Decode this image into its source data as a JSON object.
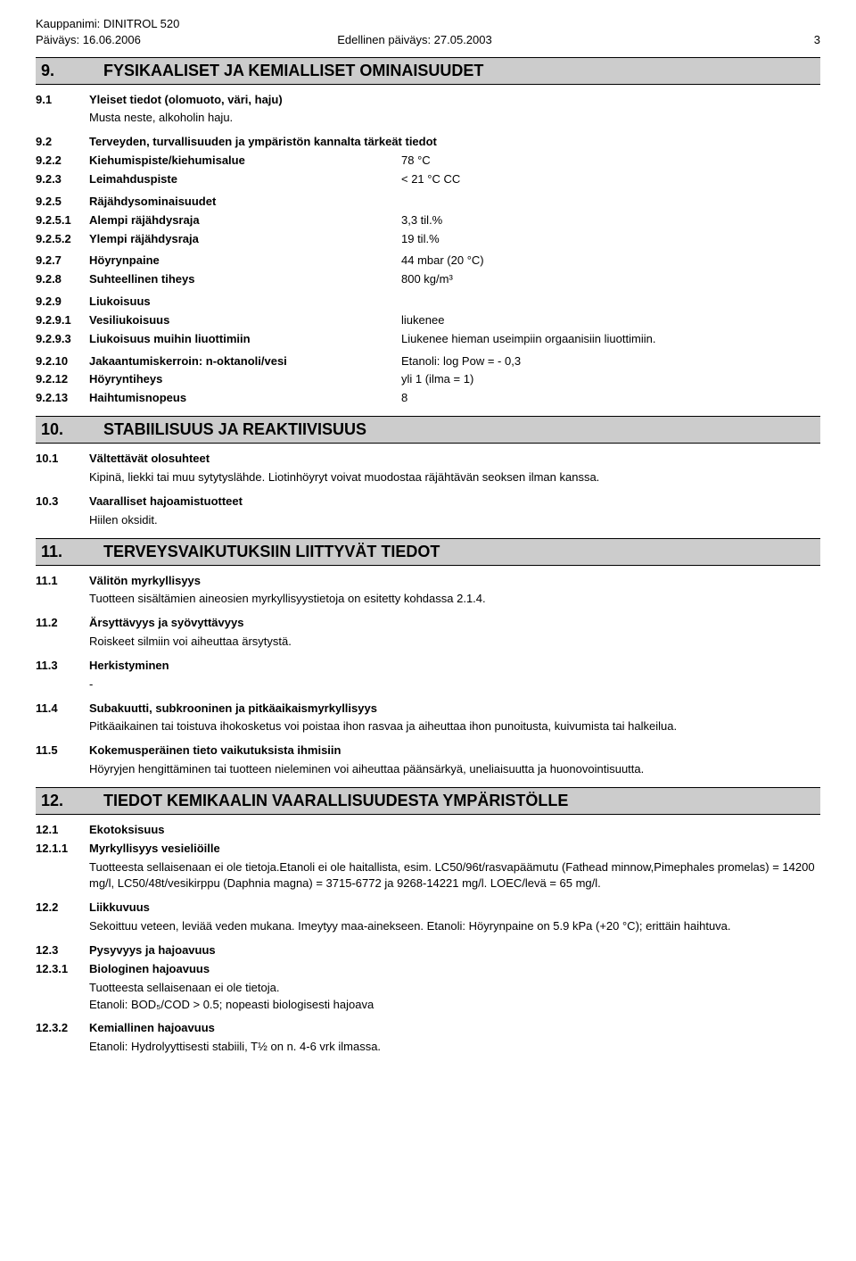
{
  "header": {
    "trade_name_label": "Kauppanimi: DINITROL 520",
    "date_label": "Päiväys: 16.06.2006",
    "previous_date_label": "Edellinen päiväys: 27.05.2003",
    "page_number": "3"
  },
  "section9": {
    "num": "9.",
    "title": "FYSIKAALISET JA KEMIALLISET OMINAISUUDET",
    "r9_1": {
      "n": "9.1",
      "l": "Yleiset tiedot (olomuoto, väri, haju)",
      "body": "Musta  neste, alkoholin haju."
    },
    "r9_2": {
      "n": "9.2",
      "l": "Terveyden, turvallisuuden ja ympäristön kannalta tärkeät tiedot"
    },
    "r9_2_2": {
      "n": "9.2.2",
      "l": "Kiehumispiste/kiehumisalue",
      "v": "78 °C"
    },
    "r9_2_3": {
      "n": "9.2.3",
      "l": "Leimahduspiste",
      "v": "< 21 °C  CC"
    },
    "r9_2_5": {
      "n": "9.2.5",
      "l": "Räjähdysominaisuudet"
    },
    "r9_2_5_1": {
      "n": "9.2.5.1",
      "l": "Alempi räjähdysraja",
      "v": "3,3 til.%"
    },
    "r9_2_5_2": {
      "n": "9.2.5.2",
      "l": "Ylempi räjähdysraja",
      "v": "19 til.%"
    },
    "r9_2_7": {
      "n": "9.2.7",
      "l": "Höyrynpaine",
      "v": "44 mbar (20 °C)"
    },
    "r9_2_8": {
      "n": "9.2.8",
      "l": "Suhteellinen tiheys",
      "v": "800 kg/m³"
    },
    "r9_2_9": {
      "n": "9.2.9",
      "l": "Liukoisuus"
    },
    "r9_2_9_1": {
      "n": "9.2.9.1",
      "l": "Vesiliukoisuus",
      "v": "liukenee"
    },
    "r9_2_9_3": {
      "n": "9.2.9.3",
      "l": "Liukoisuus muihin liuottimiin",
      "v": "Liukenee hieman useimpiin orgaanisiin liuottimiin."
    },
    "r9_2_10": {
      "n": "9.2.10",
      "l": "Jakaantumiskerroin: n-oktanoli/vesi",
      "v": "Etanoli: log Pow = - 0,3"
    },
    "r9_2_12": {
      "n": "9.2.12",
      "l": "Höyryntiheys",
      "v": "yli 1  (ilma = 1)"
    },
    "r9_2_13": {
      "n": "9.2.13",
      "l": "Haihtumisnopeus",
      "v": "8"
    }
  },
  "section10": {
    "num": "10.",
    "title": "STABIILISUUS JA REAKTIIVISUUS",
    "r10_1": {
      "n": "10.1",
      "l": "Vältettävät olosuhteet",
      "body": "Kipinä, liekki tai muu sytytyslähde. Liotinhöyryt voivat muodostaa räjähtävän seoksen ilman kanssa."
    },
    "r10_3": {
      "n": "10.3",
      "l": "Vaaralliset hajoamistuotteet",
      "body": "Hiilen oksidit."
    }
  },
  "section11": {
    "num": "11.",
    "title": "TERVEYSVAIKUTUKSIIN LIITTYVÄT TIEDOT",
    "r11_1": {
      "n": "11.1",
      "l": "Välitön myrkyllisyys",
      "body": "Tuotteen sisältämien aineosien myrkyllisyystietoja on esitetty kohdassa 2.1.4."
    },
    "r11_2": {
      "n": "11.2",
      "l": "Ärsyttävyys ja syövyttävyys",
      "body": "Roiskeet silmiin voi aiheuttaa ärsytystä."
    },
    "r11_3": {
      "n": "11.3",
      "l": "Herkistyminen",
      "body": "-"
    },
    "r11_4": {
      "n": "11.4",
      "l": "Subakuutti, subkrooninen ja pitkäaikaismyrkyllisyys",
      "body": "Pitkäaikainen tai toistuva ihokosketus voi poistaa ihon rasvaa ja aiheuttaa  ihon punoitusta, kuivumista tai halkeilua."
    },
    "r11_5": {
      "n": "11.5",
      "l": "Kokemusperäinen tieto vaikutuksista ihmisiin",
      "body": "Höyryjen  hengittäminen tai tuotteen nieleminen voi  aiheuttaa päänsärkyä, uneliaisuutta ja huonovointisuutta."
    }
  },
  "section12": {
    "num": "12.",
    "title": "TIEDOT KEMIKAALIN VAARALLISUUDESTA YMPÄRISTÖLLE",
    "r12_1": {
      "n": "12.1",
      "l": "Ekotoksisuus"
    },
    "r12_1_1": {
      "n": "12.1.1",
      "l": "Myrkyllisyys vesieliöille",
      "body": "Tuotteesta sellaisenaan ei ole tietoja.Etanoli  ei ole haitallista, esim. LC50/96t/rasvapäämutu (Fathead minnow,Pimephales promelas) = 14200 mg/l,  LC50/48t/vesikirppu (Daphnia magna) = 3715-6772 ja 9268-14221 mg/l. LOEC/levä =  65 mg/l."
    },
    "r12_2": {
      "n": "12.2",
      "l": "Liikkuvuus",
      "body": "Sekoittuu veteen, leviää veden mukana. Imeytyy maa-ainekseen. Etanoli: Höyrynpaine on 5.9 kPa (+20 °C); erittäin haihtuva."
    },
    "r12_3": {
      "n": "12.3",
      "l": "Pysyvyys ja hajoavuus"
    },
    "r12_3_1": {
      "n": "12.3.1",
      "l": "Biologinen hajoavuus",
      "body": "Tuotteesta sellaisenaan ei ole tietoja.",
      "body2": "Etanoli: BOD₅/COD > 0.5; nopeasti biologisesti hajoava"
    },
    "r12_3_2": {
      "n": "12.3.2",
      "l": "Kemiallinen hajoavuus",
      "body": "Etanoli: Hydrolyyttisesti stabiili, T½ on n. 4-6 vrk ilmassa."
    }
  }
}
